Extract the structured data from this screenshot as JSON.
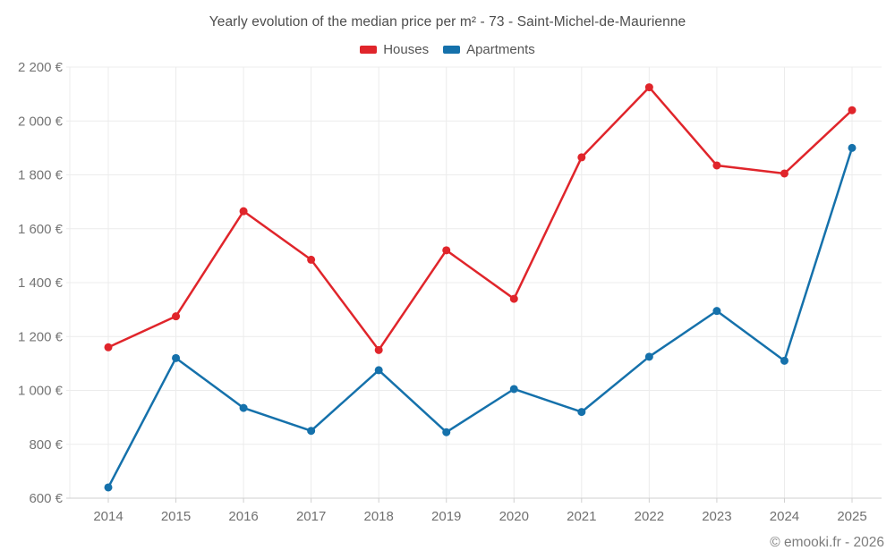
{
  "title": "Yearly evolution of the median price per m² - 73 - Saint-Michel-de-Maurienne",
  "legend": {
    "items": [
      {
        "label": "Houses",
        "color": "#e0252b"
      },
      {
        "label": "Apartments",
        "color": "#1571ab"
      }
    ]
  },
  "footer": {
    "copyright": "© emooki.fr - 2026"
  },
  "chart_data": {
    "type": "line",
    "title": "Yearly evolution of the median price per m² - 73 - Saint-Michel-de-Maurienne",
    "categories": [
      "2014",
      "2015",
      "2016",
      "2017",
      "2018",
      "2019",
      "2020",
      "2021",
      "2022",
      "2023",
      "2024",
      "2025"
    ],
    "series": [
      {
        "name": "Houses",
        "color": "#e0252b",
        "values": [
          1160,
          1275,
          1665,
          1485,
          1150,
          1520,
          1340,
          1865,
          2125,
          1835,
          1805,
          2040
        ]
      },
      {
        "name": "Apartments",
        "color": "#1571ab",
        "values": [
          640,
          1120,
          935,
          850,
          1075,
          845,
          1005,
          920,
          1125,
          1295,
          1110,
          1900
        ]
      }
    ],
    "ylim": [
      600,
      2200
    ],
    "ytick_values": [
      600,
      800,
      1000,
      1200,
      1400,
      1600,
      1800,
      2000,
      2200
    ],
    "ytick_labels": [
      "600 €",
      "800 €",
      "1 000 €",
      "1 200 €",
      "1 400 €",
      "1 600 €",
      "1 800 €",
      "2 000 €",
      "2 200 €"
    ],
    "currency_suffix": " €",
    "grid": true,
    "legend_position": "top",
    "xlabel": "",
    "ylabel": ""
  }
}
